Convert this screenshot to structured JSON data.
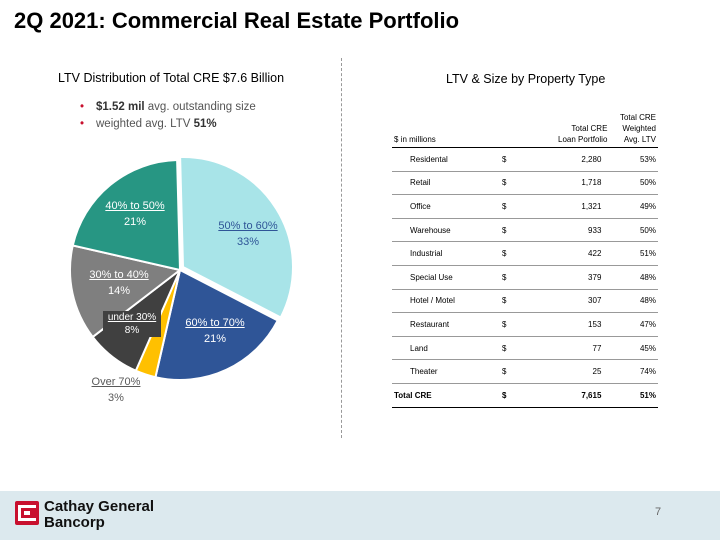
{
  "title": "2Q 2021: Commercial Real Estate Portfolio",
  "left": {
    "heading": "LTV Distribution of Total CRE $7.6 Billion",
    "bullets": [
      {
        "bold": "$1.52 mil",
        "text": " avg. outstanding size"
      },
      {
        "text": "weighted avg. LTV ",
        "bold": "51%"
      }
    ]
  },
  "chart_data": {
    "type": "pie",
    "slices": [
      {
        "label": "50% to 60%",
        "value": 33,
        "display": "33%",
        "color": "#a8e4e8"
      },
      {
        "label": "60% to 70%",
        "value": 21,
        "display": "21%",
        "color": "#2f5597"
      },
      {
        "label": "Over 70%",
        "value": 3,
        "display": "3%",
        "color": "#ffc000"
      },
      {
        "label": "under 30%",
        "value": 8,
        "display": "8%",
        "color": "#404040"
      },
      {
        "label": "30% to 40%",
        "value": 14,
        "display": "14%",
        "color": "#7f7f7f"
      },
      {
        "label": "40% to 50%",
        "value": 21,
        "display": "21%",
        "color": "#279683"
      }
    ]
  },
  "right": {
    "heading": "LTV & Size by Property Type",
    "table": {
      "headers": {
        "col1": "$ in millions",
        "col2_line1": "Total CRE",
        "col2_line2": "Loan Portfolio",
        "col3_line1": "Total CRE",
        "col3_line2": "Weighted",
        "col3_line3": "Avg. LTV"
      },
      "currency": "$",
      "rows": [
        {
          "name": "Residental",
          "amount": "2,280",
          "ltv": "53%"
        },
        {
          "name": "Retail",
          "amount": "1,718",
          "ltv": "50%"
        },
        {
          "name": "Office",
          "amount": "1,321",
          "ltv": "49%"
        },
        {
          "name": "Warehouse",
          "amount": "933",
          "ltv": "50%"
        },
        {
          "name": "Industrial",
          "amount": "422",
          "ltv": "51%"
        },
        {
          "name": "Special Use",
          "amount": "379",
          "ltv": "48%"
        },
        {
          "name": "Hotel / Motel",
          "amount": "307",
          "ltv": "48%"
        },
        {
          "name": "Restaurant",
          "amount": "153",
          "ltv": "47%"
        },
        {
          "name": "Land",
          "amount": "77",
          "ltv": "45%"
        },
        {
          "name": "Theater",
          "amount": "25",
          "ltv": "74%"
        }
      ],
      "total": {
        "name": "Total CRE",
        "amount": "7,615",
        "ltv": "51%"
      }
    }
  },
  "footer": {
    "logo_line1": "Cathay General",
    "logo_line2": "Bancorp",
    "page_number": "7",
    "brand_color": "#c8102e"
  }
}
